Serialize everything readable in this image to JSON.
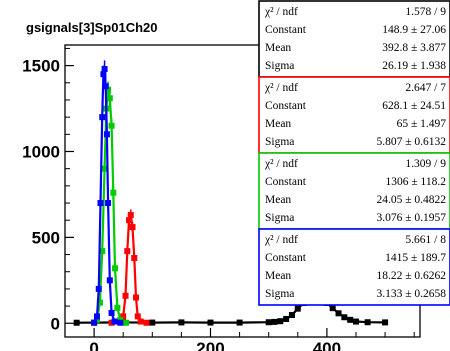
{
  "chart_data": {
    "type": "scatter",
    "title": "gsignals[3]Sp01Ch20",
    "xlabel": "",
    "ylabel": "",
    "xlim": [
      -50,
      560
    ],
    "ylim": [
      -80,
      1620
    ],
    "x_ticks": [
      0,
      200,
      400
    ],
    "x_tick_labels": [
      "0",
      "200",
      "400"
    ],
    "y_ticks": [
      0,
      500,
      1000,
      1500
    ],
    "y_tick_labels": [
      "0",
      "500",
      "1000",
      "1500"
    ],
    "grid": false,
    "series": [
      {
        "color": "#000000",
        "x": [
          -30,
          0,
          50,
          100,
          150,
          200,
          250,
          300,
          310,
          320,
          330,
          340,
          350,
          360,
          370,
          380,
          390,
          400,
          410,
          420,
          430,
          440,
          450,
          470,
          500
        ],
        "y": [
          3,
          4,
          5,
          4,
          5,
          4,
          4,
          6,
          8,
          12,
          25,
          48,
          85,
          118,
          138,
          145,
          140,
          118,
          88,
          58,
          35,
          20,
          10,
          6,
          5
        ]
      },
      {
        "color": "#ff0000",
        "x": [
          30,
          45,
          50,
          54,
          57,
          60,
          63,
          66,
          69,
          72,
          75,
          80,
          90
        ],
        "y": [
          3,
          10,
          40,
          160,
          420,
          600,
          630,
          560,
          380,
          150,
          40,
          10,
          3
        ]
      },
      {
        "color": "#00cc00",
        "x": [
          0,
          5,
          10,
          14,
          18,
          21,
          24,
          27,
          30,
          33,
          36,
          40,
          45,
          55
        ],
        "y": [
          3,
          20,
          120,
          420,
          900,
          1250,
          1360,
          1310,
          1150,
          760,
          320,
          90,
          20,
          3
        ]
      },
      {
        "color": "#0000ff",
        "x": [
          0,
          5,
          8,
          11,
          14,
          16,
          18,
          20,
          22,
          24,
          27,
          30,
          35,
          45
        ],
        "y": [
          3,
          40,
          200,
          700,
          1200,
          1450,
          1480,
          1380,
          1100,
          700,
          250,
          60,
          10,
          3
        ]
      }
    ],
    "stat_boxes": [
      {
        "color": "#000000",
        "rows": [
          {
            "label": "χ² / ndf",
            "value": "1.578 / 9"
          },
          {
            "label": "Constant",
            "value": "148.9 ± 27.06"
          },
          {
            "label": "Mean",
            "value": "392.8 ± 3.877"
          },
          {
            "label": "Sigma",
            "value": "26.19 ± 1.938"
          }
        ]
      },
      {
        "color": "#ff0000",
        "rows": [
          {
            "label": "χ² / ndf",
            "value": "2.647 / 7"
          },
          {
            "label": "Constant",
            "value": "628.1 ± 24.51"
          },
          {
            "label": "Mean",
            "value": "65 ± 1.497"
          },
          {
            "label": "Sigma",
            "value": "5.807 ± 0.6132"
          }
        ]
      },
      {
        "color": "#00cc00",
        "rows": [
          {
            "label": "χ² / ndf",
            "value": "1.309 / 9"
          },
          {
            "label": "Constant",
            "value": "1306 ± 118.2"
          },
          {
            "label": "Mean",
            "value": "24.05 ± 0.4822"
          },
          {
            "label": "Sigma",
            "value": "3.076 ± 0.1957"
          }
        ]
      },
      {
        "color": "#0000ff",
        "rows": [
          {
            "label": "χ² / ndf",
            "value": "5.661 / 8"
          },
          {
            "label": "Constant",
            "value": "1415 ± 189.7"
          },
          {
            "label": "Mean",
            "value": "18.22 ± 0.6262"
          },
          {
            "label": "Sigma",
            "value": "3.133 ± 0.2658"
          }
        ]
      }
    ]
  }
}
